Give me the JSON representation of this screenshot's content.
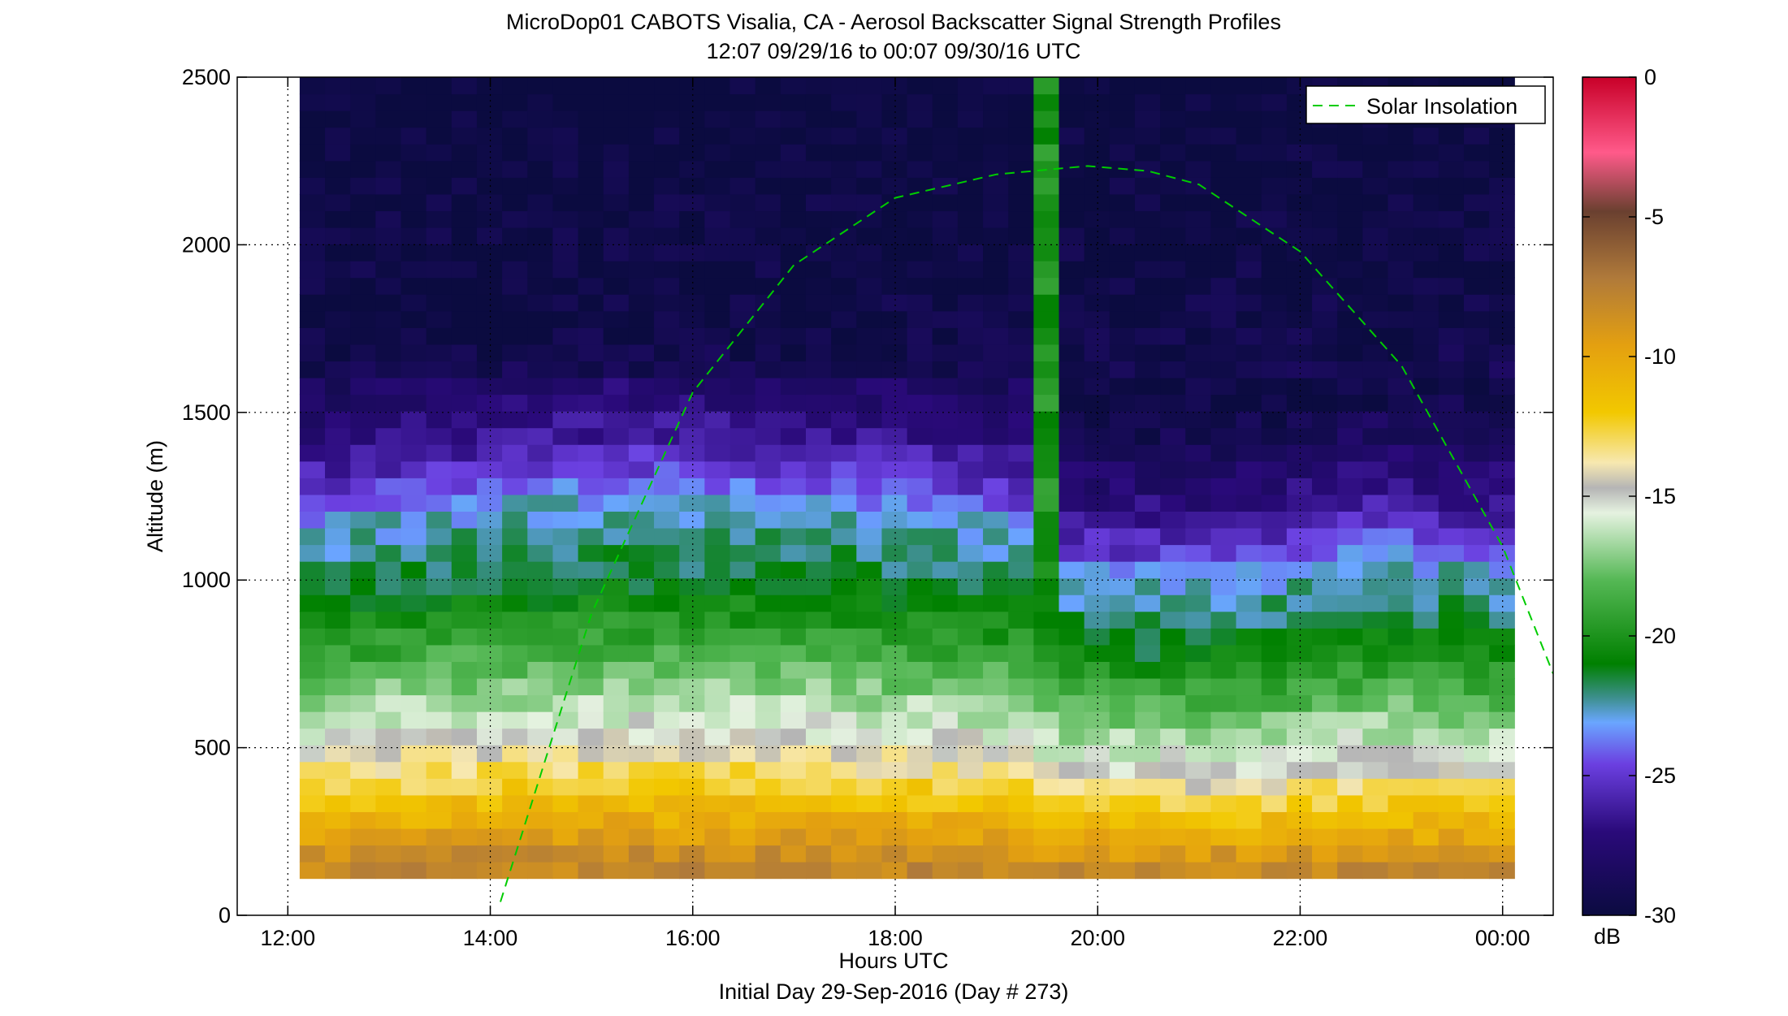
{
  "chart_data": {
    "type": "heatmap",
    "title": "MicroDop01 CABOTS Visalia, CA - Aerosol Backscatter Signal Strength Profiles",
    "subtitle": "12:07 09/29/16 to 00:07 09/30/16  UTC",
    "xlabel": "Hours UTC",
    "footer": "Initial Day 29-Sep-2016 (Day # 273)",
    "ylabel": "Altitude (m)",
    "colorbar_label": "dB",
    "x_range_hours": [
      11.5,
      24.5
    ],
    "y_range_m": [
      0,
      2500
    ],
    "x_ticks": [
      {
        "value": 12,
        "label": "12:00"
      },
      {
        "value": 14,
        "label": "14:00"
      },
      {
        "value": 16,
        "label": "16:00"
      },
      {
        "value": 18,
        "label": "18:00"
      },
      {
        "value": 20,
        "label": "20:00"
      },
      {
        "value": 22,
        "label": "22:00"
      },
      {
        "value": 24,
        "label": "00:00"
      }
    ],
    "y_ticks": [
      {
        "value": 0,
        "label": "0"
      },
      {
        "value": 500,
        "label": "500"
      },
      {
        "value": 1000,
        "label": "1000"
      },
      {
        "value": 1500,
        "label": "1500"
      },
      {
        "value": 2000,
        "label": "2000"
      },
      {
        "value": 2500,
        "label": "2500"
      }
    ],
    "colorbar_range_db": [
      -30,
      0
    ],
    "colorbar_ticks": [
      {
        "value": 0,
        "label": "0"
      },
      {
        "value": -5,
        "label": "-5"
      },
      {
        "value": -10,
        "label": "-10"
      },
      {
        "value": -15,
        "label": "-15"
      },
      {
        "value": -20,
        "label": "-20"
      },
      {
        "value": -25,
        "label": "-25"
      },
      {
        "value": -30,
        "label": "-30"
      }
    ],
    "data_time_range_hours": [
      12.117,
      24.117
    ],
    "data_altitude_range_m": [
      110,
      2500
    ],
    "grid": true,
    "legend": {
      "position": "top-right",
      "entries": [
        "Solar Insolation"
      ]
    },
    "solar_insolation": {
      "color": "#00cc00",
      "style": "dashed",
      "points": [
        [
          14.1,
          40
        ],
        [
          15.0,
          900
        ],
        [
          16.0,
          1560
        ],
        [
          17.0,
          1940
        ],
        [
          18.0,
          2140
        ],
        [
          19.0,
          2210
        ],
        [
          19.9,
          2235
        ],
        [
          20.5,
          2220
        ],
        [
          21.0,
          2180
        ],
        [
          22.0,
          1980
        ],
        [
          23.0,
          1640
        ],
        [
          24.0,
          1100
        ],
        [
          24.5,
          720
        ]
      ]
    },
    "signal_profile_median": [
      {
        "altitude_m": 150,
        "db": -8
      },
      {
        "altitude_m": 300,
        "db": -11
      },
      {
        "altitude_m": 450,
        "db": -14
      },
      {
        "altitude_m": 500,
        "db": -15
      },
      {
        "altitude_m": 700,
        "db": -18
      },
      {
        "altitude_m": 900,
        "db": -21
      },
      {
        "altitude_m": 1150,
        "db": -23
      },
      {
        "altitude_m": 1250,
        "db": -25
      },
      {
        "altitude_m": 1400,
        "db": -27
      },
      {
        "altitude_m": 1700,
        "db": -29.5
      },
      {
        "altitude_m": 2500,
        "db": -30
      }
    ]
  }
}
